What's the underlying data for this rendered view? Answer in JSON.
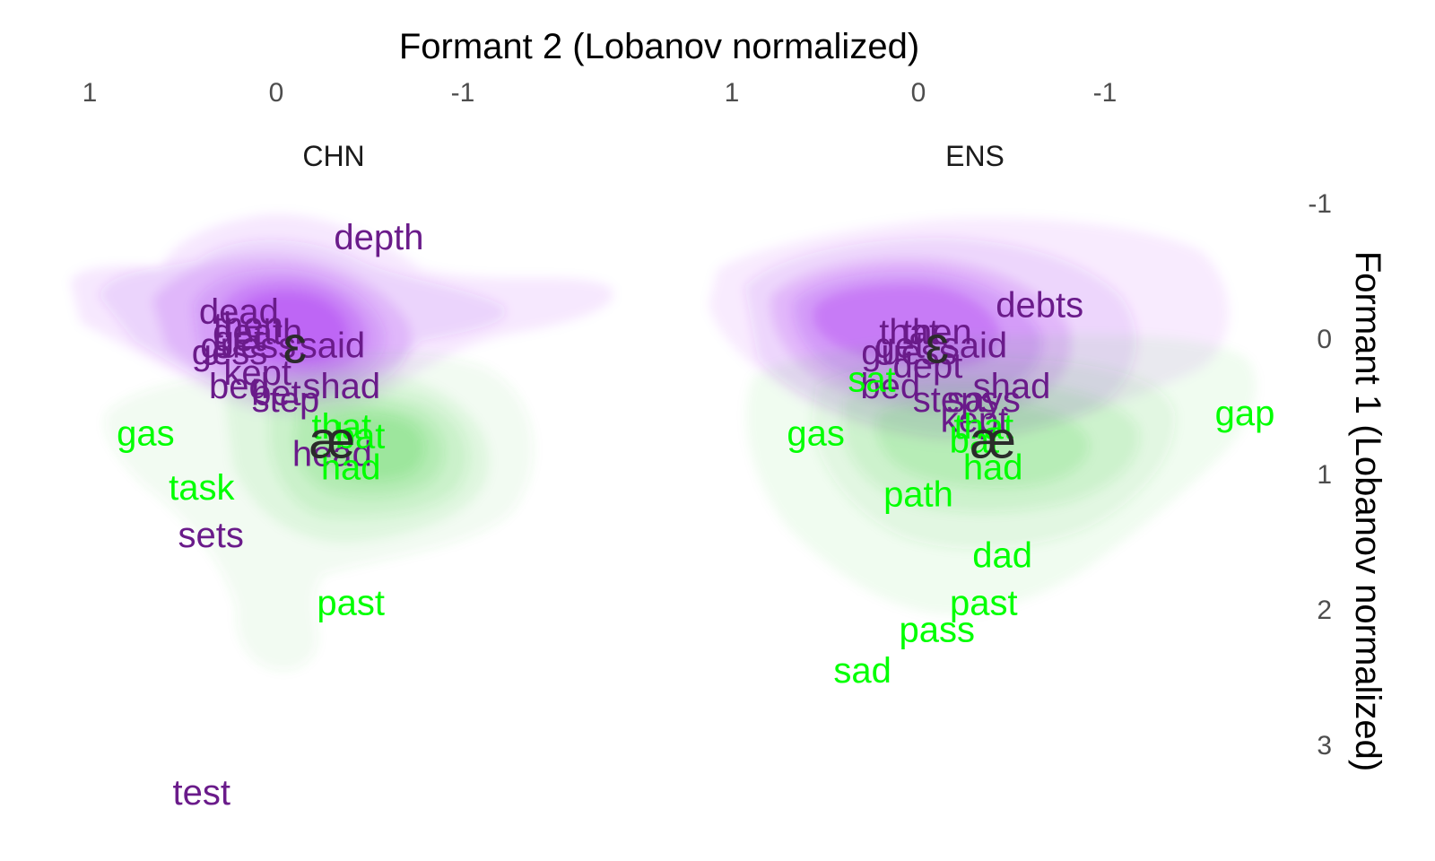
{
  "chart_data": {
    "type": "scatter",
    "title": "",
    "xlabel": "Formant 2 (Lobanov normalized)",
    "ylabel": "Formant 1 (Lobanov normalized)",
    "x_reversed": true,
    "y_reversed": true,
    "xlim": [
      1.0,
      -1.0
    ],
    "ylim": [
      -1,
      3
    ],
    "x_ticks": [
      {
        "value": 1,
        "label": "1"
      },
      {
        "value": 0,
        "label": "0"
      },
      {
        "value": -1,
        "label": "-1"
      }
    ],
    "y_ticks": [
      {
        "value": -1,
        "label": "-1"
      },
      {
        "value": 0,
        "label": "0"
      },
      {
        "value": 1,
        "label": "1"
      },
      {
        "value": 2,
        "label": "2"
      },
      {
        "value": 3,
        "label": "3"
      }
    ],
    "x_axis_position": "top",
    "y_axis_position": "right",
    "grid": false,
    "legend": "none",
    "colors": {
      "ɛ": "#6a1b8a",
      "æ": "#00ff00",
      "ɛ_density": "#a020f0",
      "æ_density": "#32cd32",
      "centroid": "#2b2b2b"
    },
    "panels": [
      {
        "name": "CHN",
        "centroids": [
          {
            "vowel": "ɛ",
            "x": -0.1,
            "y": 0.05
          },
          {
            "vowel": "æ",
            "x": -0.3,
            "y": 0.75
          }
        ],
        "words": [
          {
            "text": "depth",
            "vowel": "ɛ",
            "x": -0.55,
            "y": -0.75
          },
          {
            "text": "dead",
            "vowel": "ɛ",
            "x": 0.2,
            "y": -0.2
          },
          {
            "text": "then",
            "vowel": "ɛ",
            "x": 0.15,
            "y": -0.1
          },
          {
            "text": "death",
            "vowel": "ɛ",
            "x": 0.1,
            "y": -0.05
          },
          {
            "text": "get",
            "vowel": "ɛ",
            "x": 0.2,
            "y": 0.0
          },
          {
            "text": "guess",
            "vowel": "ɛ",
            "x": 0.15,
            "y": 0.05
          },
          {
            "text": "said",
            "vowel": "ɛ",
            "x": -0.3,
            "y": 0.05
          },
          {
            "text": "gess",
            "vowel": "ɛ",
            "x": 0.25,
            "y": 0.1
          },
          {
            "text": "kept",
            "vowel": "ɛ",
            "x": 0.1,
            "y": 0.25
          },
          {
            "text": "bed",
            "vowel": "ɛ",
            "x": 0.2,
            "y": 0.35
          },
          {
            "text": "bet",
            "vowel": "ɛ",
            "x": 0.0,
            "y": 0.4
          },
          {
            "text": "shad",
            "vowel": "ɛ",
            "x": -0.35,
            "y": 0.35
          },
          {
            "text": "step",
            "vowel": "ɛ",
            "x": -0.05,
            "y": 0.45
          },
          {
            "text": "sets",
            "vowel": "ɛ",
            "x": 0.35,
            "y": 1.45
          },
          {
            "text": "test",
            "vowel": "ɛ",
            "x": 0.4,
            "y": 3.35
          },
          {
            "text": "head",
            "vowel": "ɛ",
            "x": -0.3,
            "y": 0.85
          },
          {
            "text": "gas",
            "vowel": "æ",
            "x": 0.7,
            "y": 0.7
          },
          {
            "text": "task",
            "vowel": "æ",
            "x": 0.4,
            "y": 1.1
          },
          {
            "text": "that",
            "vowel": "æ",
            "x": -0.35,
            "y": 0.65
          },
          {
            "text": "bat",
            "vowel": "æ",
            "x": -0.45,
            "y": 0.72
          },
          {
            "text": "had",
            "vowel": "æ",
            "x": -0.4,
            "y": 0.95
          },
          {
            "text": "past",
            "vowel": "æ",
            "x": -0.4,
            "y": 1.95
          }
        ]
      },
      {
        "name": "ENS",
        "centroids": [
          {
            "vowel": "ɛ",
            "x": -0.1,
            "y": 0.05
          },
          {
            "vowel": "æ",
            "x": -0.4,
            "y": 0.75
          }
        ],
        "words": [
          {
            "text": "debts",
            "vowel": "ɛ",
            "x": -0.65,
            "y": -0.25
          },
          {
            "text": "that",
            "vowel": "ɛ",
            "x": 0.05,
            "y": -0.05
          },
          {
            "text": "then",
            "vowel": "ɛ",
            "x": -0.1,
            "y": -0.05
          },
          {
            "text": "get",
            "vowel": "ɛ",
            "x": 0.1,
            "y": 0.05
          },
          {
            "text": "guess",
            "vowel": "ɛ",
            "x": 0.05,
            "y": 0.1
          },
          {
            "text": "said",
            "vowel": "ɛ",
            "x": -0.3,
            "y": 0.05
          },
          {
            "text": "dept",
            "vowel": "ɛ",
            "x": -0.05,
            "y": 0.2
          },
          {
            "text": "bed",
            "vowel": "ɛ",
            "x": 0.15,
            "y": 0.35
          },
          {
            "text": "shad",
            "vowel": "ɛ",
            "x": -0.5,
            "y": 0.35
          },
          {
            "text": "steps",
            "vowel": "ɛ",
            "x": -0.2,
            "y": 0.45
          },
          {
            "text": "says",
            "vowel": "ɛ",
            "x": -0.35,
            "y": 0.45
          },
          {
            "text": "kept",
            "vowel": "ɛ",
            "x": -0.3,
            "y": 0.6
          },
          {
            "text": "sat",
            "vowel": "æ",
            "x": 0.25,
            "y": 0.3
          },
          {
            "text": "gas",
            "vowel": "æ",
            "x": 0.55,
            "y": 0.7
          },
          {
            "text": "gap",
            "vowel": "æ",
            "x": -1.75,
            "y": 0.55
          },
          {
            "text": "that",
            "vowel": "æ",
            "x": -0.35,
            "y": 0.65
          },
          {
            "text": "bat",
            "vowel": "æ",
            "x": -0.3,
            "y": 0.75
          },
          {
            "text": "had",
            "vowel": "æ",
            "x": -0.4,
            "y": 0.95
          },
          {
            "text": "path",
            "vowel": "æ",
            "x": 0.0,
            "y": 1.15
          },
          {
            "text": "dad",
            "vowel": "æ",
            "x": -0.45,
            "y": 1.6
          },
          {
            "text": "past",
            "vowel": "æ",
            "x": -0.35,
            "y": 1.95
          },
          {
            "text": "pass",
            "vowel": "æ",
            "x": -0.1,
            "y": 2.15
          },
          {
            "text": "sad",
            "vowel": "æ",
            "x": 0.3,
            "y": 2.45
          }
        ]
      }
    ]
  }
}
